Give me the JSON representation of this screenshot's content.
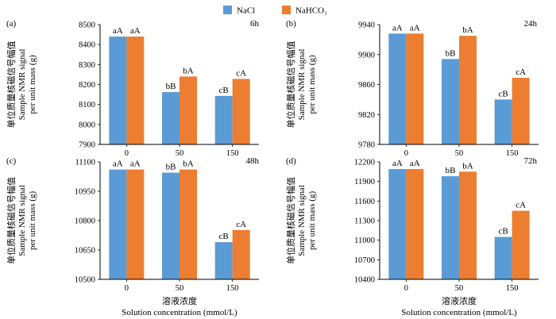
{
  "legend": [
    {
      "label": "NaCl",
      "color": "#5b9bd5"
    },
    {
      "label": "NaHCO₃",
      "color": "#ed7d31"
    }
  ],
  "x_title_cn": "溶液浓度",
  "x_title_en": "Solution concentration (mmol/L)",
  "y_title_cn": "单位质量核磁信号幅值",
  "y_title_en_1": "Sample NMR signal",
  "y_title_en_2": "per unit mass (g)",
  "chart_data": [
    {
      "type": "bar",
      "panel": "(a)",
      "time": "6h",
      "categories": [
        "0",
        "50",
        "150"
      ],
      "series": [
        {
          "name": "NaCl",
          "values": [
            8440,
            8162,
            8143
          ],
          "labels": [
            "aA",
            "bB",
            "cB"
          ]
        },
        {
          "name": "NaHCO₃",
          "values": [
            8440,
            8240,
            8228
          ],
          "labels": [
            "aA",
            "bA",
            "cA"
          ]
        }
      ],
      "ylim": [
        7900,
        8500
      ],
      "yticks": [
        7900,
        8000,
        8100,
        8200,
        8300,
        8400,
        8500
      ]
    },
    {
      "type": "bar",
      "panel": "(b)",
      "time": "24h",
      "categories": [
        "0",
        "50",
        "150"
      ],
      "series": [
        {
          "name": "NaCl",
          "values": [
            9928,
            9894,
            9840
          ],
          "labels": [
            "aA",
            "bB",
            "cB"
          ]
        },
        {
          "name": "NaHCO₃",
          "values": [
            9928,
            9925,
            9869
          ],
          "labels": [
            "aA",
            "bA",
            "cA"
          ]
        }
      ],
      "ylim": [
        9780,
        9940
      ],
      "yticks": [
        9780,
        9820,
        9860,
        9900,
        9940
      ]
    },
    {
      "type": "bar",
      "panel": "(c)",
      "time": "48h",
      "categories": [
        "0",
        "50",
        "150"
      ],
      "series": [
        {
          "name": "NaCl",
          "values": [
            11061,
            11045,
            10690
          ],
          "labels": [
            "aA",
            "bB",
            "cB"
          ]
        },
        {
          "name": "NaHCO₃",
          "values": [
            11061,
            11061,
            10752
          ],
          "labels": [
            "aA",
            "bA",
            "cA"
          ]
        }
      ],
      "ylim": [
        10500,
        11100
      ],
      "yticks": [
        10500,
        10650,
        10800,
        10950,
        11100
      ]
    },
    {
      "type": "bar",
      "panel": "(d)",
      "time": "72h",
      "categories": [
        "0",
        "50",
        "150"
      ],
      "series": [
        {
          "name": "NaCl",
          "values": [
            12090,
            11980,
            11050
          ],
          "labels": [
            "aA",
            "bB",
            "cB"
          ]
        },
        {
          "name": "NaHCO₃",
          "values": [
            12090,
            12050,
            11450
          ],
          "labels": [
            "aA",
            "bA",
            "cA"
          ]
        }
      ],
      "ylim": [
        10400,
        12200
      ],
      "yticks": [
        10400,
        10700,
        11000,
        11300,
        11600,
        11900,
        12200
      ]
    }
  ]
}
